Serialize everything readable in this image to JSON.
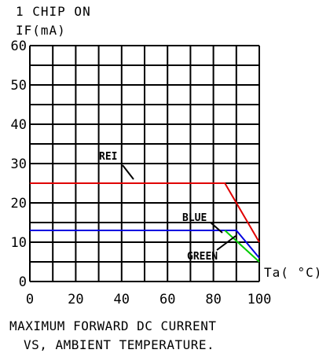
{
  "chart_data": {
    "type": "line",
    "title": "1 CHIP ON",
    "ylabel": "IF(mA)",
    "xlabel": "Ta( °C)",
    "caption_line1": "MAXIMUM FORWARD DC CURRENT",
    "caption_line2": "VS, AMBIENT TEMPERATURE.",
    "xlim": [
      0,
      100
    ],
    "ylim": [
      0,
      60
    ],
    "xticks": [
      0,
      20,
      40,
      60,
      80,
      100
    ],
    "yticks": [
      0,
      10,
      20,
      30,
      40,
      50,
      60
    ],
    "grid": true,
    "series": [
      {
        "name": "RED",
        "label_text": "REI",
        "color": "#e00000",
        "x": [
          0,
          85,
          100
        ],
        "y": [
          25,
          25,
          10
        ]
      },
      {
        "name": "BLUE",
        "label_text": "BLUE",
        "color": "#0000e0",
        "x": [
          0,
          90,
          100
        ],
        "y": [
          13,
          13,
          6
        ]
      },
      {
        "name": "GREEN",
        "label_text": "GREEN",
        "color": "#00cc00",
        "x": [
          85,
          100
        ],
        "y": [
          13,
          5
        ]
      }
    ]
  }
}
